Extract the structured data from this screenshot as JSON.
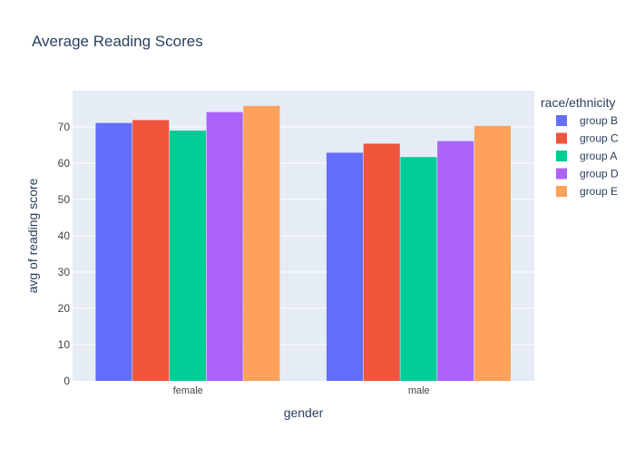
{
  "chart_data": {
    "type": "bar",
    "title": "Average Reading Scores",
    "xlabel": "gender",
    "ylabel": "avg of reading score",
    "categories": [
      "female",
      "male"
    ],
    "ylim": [
      0,
      80
    ],
    "yticks": [
      0,
      10,
      20,
      30,
      40,
      50,
      60,
      70
    ],
    "grid": true,
    "legend": {
      "title": "race/ethnicity",
      "placement": "right"
    },
    "series": [
      {
        "name": "group B",
        "color": "#636efa",
        "values": [
          71.1,
          62.9
        ]
      },
      {
        "name": "group C",
        "color": "#ef553b",
        "values": [
          71.9,
          65.4
        ]
      },
      {
        "name": "group A",
        "color": "#00cc96",
        "values": [
          69.0,
          61.7
        ]
      },
      {
        "name": "group D",
        "color": "#ab63fa",
        "values": [
          74.1,
          66.1
        ]
      },
      {
        "name": "group E",
        "color": "#ffa15a",
        "values": [
          75.8,
          70.3
        ]
      }
    ]
  },
  "colors": {
    "plot_background": "#e5ecf6",
    "grid": "#ffffff",
    "text": "#2a3f5f",
    "tick_text": "#444444"
  }
}
